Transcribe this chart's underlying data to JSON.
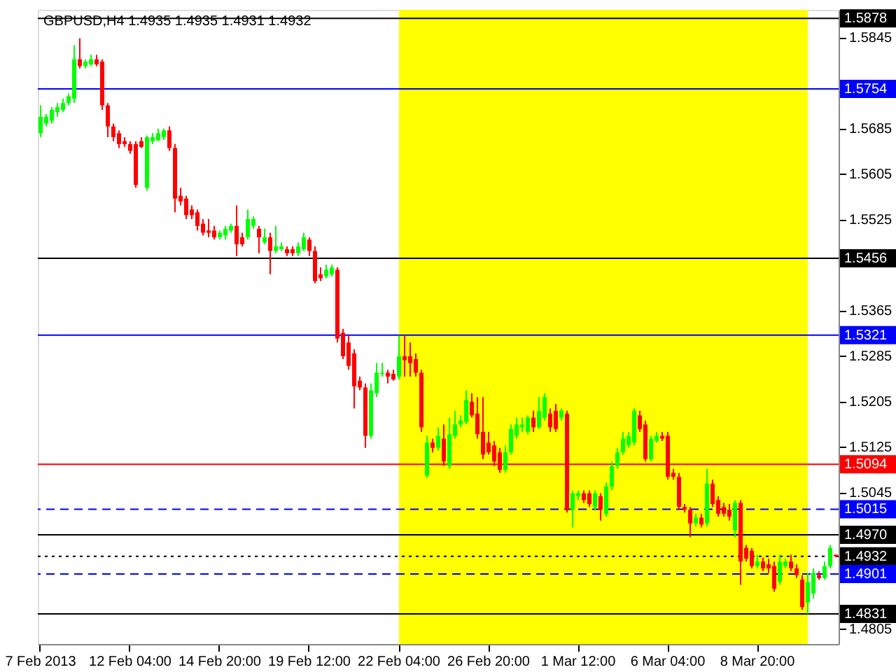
{
  "chart_data": {
    "type": "candlestick",
    "title": "GBPUSD,H4  1.4935 1.4935 1.4931 1.4932",
    "categories": [
      "7 Feb 2013",
      null,
      null,
      null,
      null,
      null,
      null,
      null,
      null,
      null,
      null,
      null,
      null,
      null,
      null,
      null,
      "12 Feb 04:00",
      null,
      null,
      null,
      null,
      null,
      null,
      null,
      null,
      null,
      null,
      null,
      null,
      null,
      null,
      null,
      "14 Feb 20:00",
      null,
      null,
      null,
      null,
      null,
      null,
      null,
      null,
      null,
      null,
      null,
      null,
      null,
      null,
      null,
      "19 Feb 12:00",
      null,
      null,
      null,
      null,
      null,
      null,
      null,
      null,
      null,
      null,
      null,
      null,
      null,
      null,
      null,
      "22 Feb 04:00",
      null,
      null,
      null,
      null,
      null,
      null,
      null,
      null,
      null,
      null,
      null,
      null,
      null,
      null,
      null,
      "26 Feb 20:00",
      null,
      null,
      null,
      null,
      null,
      null,
      null,
      null,
      null,
      null,
      null,
      null,
      null,
      null,
      null,
      "1 Mar 12:00",
      null,
      null,
      null,
      null,
      null,
      null,
      null,
      null,
      null,
      null,
      null,
      null,
      null,
      null,
      null,
      "6 Mar 04:00",
      null,
      null,
      null,
      null,
      null,
      null,
      null,
      null,
      null,
      null,
      null,
      null,
      null,
      null,
      null,
      "8 Mar 20:00",
      null,
      null,
      null,
      null,
      null,
      null,
      null,
      null,
      null,
      null,
      null,
      null,
      null,
      null
    ],
    "ohlc": [
      [
        1.5676,
        1.5725,
        1.5669,
        1.5705
      ],
      [
        1.5693,
        1.571,
        1.5688,
        1.5705
      ],
      [
        1.5698,
        1.5722,
        1.5693,
        1.5717
      ],
      [
        1.5713,
        1.5729,
        1.5705,
        1.5722
      ],
      [
        1.5717,
        1.5737,
        1.5713,
        1.5729
      ],
      [
        1.5729,
        1.5746,
        1.5725,
        1.5741
      ],
      [
        1.5737,
        1.5831,
        1.5729,
        1.5806
      ],
      [
        1.5806,
        1.5843,
        1.579,
        1.5794
      ],
      [
        1.5794,
        1.5806,
        1.579,
        1.5802
      ],
      [
        1.5797,
        1.5814,
        1.5794,
        1.5806
      ],
      [
        1.5806,
        1.5814,
        1.5794,
        1.5797
      ],
      [
        1.5802,
        1.5806,
        1.5717,
        1.5725
      ],
      [
        1.5725,
        1.5729,
        1.5669,
        1.5688
      ],
      [
        1.5688,
        1.5693,
        1.5662,
        1.5669
      ],
      [
        1.5676,
        1.5681,
        1.565,
        1.5657
      ],
      [
        1.5662,
        1.5669,
        1.5652,
        1.5657
      ],
      [
        1.5657,
        1.5662,
        1.564,
        1.5645
      ],
      [
        1.5657,
        1.5662,
        1.558,
        1.5585
      ],
      [
        1.5662,
        1.5669,
        1.565,
        1.5652
      ],
      [
        1.558,
        1.5672,
        1.5575,
        1.5669
      ],
      [
        1.5662,
        1.5676,
        1.5657,
        1.5669
      ],
      [
        1.5664,
        1.5684,
        1.5662,
        1.5676
      ],
      [
        1.5669,
        1.5684,
        1.5664,
        1.5681
      ],
      [
        1.5681,
        1.5688,
        1.5645,
        1.565
      ],
      [
        1.565,
        1.5657,
        1.5537,
        1.5561
      ],
      [
        1.5566,
        1.558,
        1.5549,
        1.5556
      ],
      [
        1.5561,
        1.5566,
        1.5525,
        1.5532
      ],
      [
        1.5542,
        1.5549,
        1.5525,
        1.5532
      ],
      [
        1.5537,
        1.5542,
        1.5505,
        1.5513
      ],
      [
        1.5517,
        1.5525,
        1.5496,
        1.5501
      ],
      [
        1.5505,
        1.5525,
        1.5493,
        1.5501
      ],
      [
        1.5505,
        1.5513,
        1.5489,
        1.5493
      ],
      [
        1.5493,
        1.5505,
        1.5489,
        1.5501
      ],
      [
        1.5496,
        1.5513,
        1.5489,
        1.5508
      ],
      [
        1.5505,
        1.5517,
        1.5501,
        1.5513
      ],
      [
        1.5513,
        1.5549,
        1.546,
        1.5481
      ],
      [
        1.5493,
        1.5501,
        1.5477,
        1.5481
      ],
      [
        1.5493,
        1.5542,
        1.5489,
        1.5525
      ],
      [
        1.5513,
        1.553,
        1.5508,
        1.5525
      ],
      [
        1.5508,
        1.5513,
        1.5465,
        1.5493
      ],
      [
        1.5484,
        1.5508,
        1.5481,
        1.5493
      ],
      [
        1.5493,
        1.5501,
        1.5428,
        1.5469
      ],
      [
        1.5469,
        1.5513,
        1.5465,
        1.5477
      ],
      [
        1.5472,
        1.5484,
        1.5469,
        1.5477
      ],
      [
        1.5472,
        1.5477,
        1.546,
        1.5465
      ],
      [
        1.5472,
        1.5477,
        1.546,
        1.5465
      ],
      [
        1.5465,
        1.5484,
        1.546,
        1.5477
      ],
      [
        1.5472,
        1.5501,
        1.5469,
        1.5493
      ],
      [
        1.5489,
        1.5493,
        1.546,
        1.5469
      ],
      [
        1.5469,
        1.5477,
        1.5412,
        1.5416
      ],
      [
        1.5428,
        1.544,
        1.5416,
        1.5421
      ],
      [
        1.5424,
        1.5445,
        1.5421,
        1.5436
      ],
      [
        1.5428,
        1.5445,
        1.5424,
        1.544
      ],
      [
        1.5436,
        1.544,
        1.5308,
        1.5315
      ],
      [
        1.5325,
        1.5332,
        1.5279,
        1.5284
      ],
      [
        1.5308,
        1.532,
        1.526,
        1.5267
      ],
      [
        1.5289,
        1.5296,
        1.5192,
        1.5231
      ],
      [
        1.5241,
        1.5248,
        1.5224,
        1.5229
      ],
      [
        1.5229,
        1.5236,
        1.5123,
        1.5144
      ],
      [
        1.5144,
        1.5236,
        1.5139,
        1.5224
      ],
      [
        1.5219,
        1.5272,
        1.5212,
        1.5255
      ],
      [
        1.5253,
        1.5272,
        1.5248,
        1.5255
      ],
      [
        1.5255,
        1.526,
        1.5236,
        1.5248
      ],
      [
        1.5253,
        1.526,
        1.5241,
        1.5243
      ],
      [
        1.5248,
        1.532,
        1.5243,
        1.5284
      ],
      [
        1.5284,
        1.532,
        1.5248,
        1.5277
      ],
      [
        1.5284,
        1.5308,
        1.5248,
        1.5272
      ],
      [
        1.5279,
        1.5289,
        1.5248,
        1.5255
      ],
      [
        1.5255,
        1.526,
        1.5151,
        1.5159
      ],
      [
        1.5074,
        1.5144,
        1.507,
        1.5132
      ],
      [
        1.5132,
        1.5139,
        1.5115,
        1.5123
      ],
      [
        1.5123,
        1.5159,
        1.5118,
        1.5144
      ],
      [
        1.5139,
        1.5164,
        1.5091,
        1.5099
      ],
      [
        1.5091,
        1.5176,
        1.5086,
        1.5147
      ],
      [
        1.5144,
        1.5188,
        1.5139,
        1.5164
      ],
      [
        1.5164,
        1.518,
        1.5159,
        1.5171
      ],
      [
        1.5168,
        1.5224,
        1.5164,
        1.5207
      ],
      [
        1.5204,
        1.5219,
        1.5176,
        1.518
      ],
      [
        1.5183,
        1.5212,
        1.5139,
        1.5147
      ],
      [
        1.5151,
        1.5212,
        1.5103,
        1.5111
      ],
      [
        1.5132,
        1.5151,
        1.5111,
        1.5115
      ],
      [
        1.5127,
        1.5135,
        1.5091,
        1.5099
      ],
      [
        1.5115,
        1.5123,
        1.5079,
        1.5084
      ],
      [
        1.5084,
        1.5127,
        1.5079,
        1.5115
      ],
      [
        1.5115,
        1.5164,
        1.5111,
        1.5156
      ],
      [
        1.5144,
        1.5176,
        1.5139,
        1.5164
      ],
      [
        1.5159,
        1.5176,
        1.5151,
        1.5164
      ],
      [
        1.5151,
        1.518,
        1.5147,
        1.5176
      ],
      [
        1.5176,
        1.5188,
        1.5151,
        1.5159
      ],
      [
        1.5159,
        1.5212,
        1.5156,
        1.5188
      ],
      [
        1.5176,
        1.5219,
        1.5171,
        1.5212
      ],
      [
        1.5183,
        1.5192,
        1.5151,
        1.5159
      ],
      [
        1.5188,
        1.52,
        1.5151,
        1.5156
      ],
      [
        1.5176,
        1.5192,
        1.5171,
        1.5188
      ],
      [
        1.5183,
        1.5188,
        1.5009,
        1.5014
      ],
      [
        1.5014,
        1.5048,
        1.4983,
        1.5043
      ],
      [
        1.5038,
        1.5048,
        1.5031,
        1.5043
      ],
      [
        1.5043,
        1.5048,
        1.5026,
        1.5031
      ],
      [
        1.5043,
        1.5048,
        1.5019,
        1.5024
      ],
      [
        1.5019,
        1.5048,
        1.5014,
        1.5043
      ],
      [
        1.5038,
        1.5043,
        1.4995,
        1.5014
      ],
      [
        1.5007,
        1.5062,
        1.5002,
        1.5055
      ],
      [
        1.5055,
        1.5099,
        1.5048,
        1.5091
      ],
      [
        1.5091,
        1.5123,
        1.5086,
        1.5115
      ],
      [
        1.5115,
        1.5151,
        1.5111,
        1.5139
      ],
      [
        1.5127,
        1.5151,
        1.5123,
        1.5144
      ],
      [
        1.5132,
        1.5192,
        1.5127,
        1.5188
      ],
      [
        1.518,
        1.5188,
        1.5151,
        1.5156
      ],
      [
        1.5164,
        1.5171,
        1.5099,
        1.5103
      ],
      [
        1.5103,
        1.5144,
        1.5099,
        1.5139
      ],
      [
        1.5135,
        1.5151,
        1.5132,
        1.5144
      ],
      [
        1.5144,
        1.5151,
        1.5135,
        1.5139
      ],
      [
        1.5144,
        1.5151,
        1.5067,
        1.5072
      ],
      [
        1.5079,
        1.5086,
        1.5067,
        1.5072
      ],
      [
        1.5072,
        1.5079,
        1.5014,
        1.5019
      ],
      [
        1.5019,
        1.5024,
        1.5009,
        1.5014
      ],
      [
        1.5014,
        1.5019,
        1.4966,
        1.499
      ],
      [
        1.499,
        1.5007,
        1.4985,
        1.5
      ],
      [
        1.5,
        1.5007,
        1.4983,
        1.4988
      ],
      [
        1.499,
        1.5086,
        1.4985,
        1.506
      ],
      [
        1.506,
        1.5067,
        1.5019,
        1.5024
      ],
      [
        1.5031,
        1.5038,
        1.5002,
        1.5007
      ],
      [
        1.5019,
        1.5026,
        1.5002,
        1.5007
      ],
      [
        1.5014,
        1.5024,
        1.4995,
        1.5002
      ],
      [
        1.4978,
        1.5031,
        1.4966,
        1.5026
      ],
      [
        1.5026,
        1.5031,
        1.4882,
        1.4923
      ],
      [
        1.4947,
        1.4952,
        1.4923,
        1.4928
      ],
      [
        1.4942,
        1.4947,
        1.4911,
        1.4915
      ],
      [
        1.4915,
        1.4935,
        1.4911,
        1.4923
      ],
      [
        1.4923,
        1.493,
        1.4906,
        1.4911
      ],
      [
        1.4918,
        1.4928,
        1.4903,
        1.4911
      ],
      [
        1.4915,
        1.4923,
        1.487,
        1.4875
      ],
      [
        1.4887,
        1.4935,
        1.4882,
        1.4923
      ],
      [
        1.4915,
        1.4928,
        1.4911,
        1.4923
      ],
      [
        1.4923,
        1.4935,
        1.4906,
        1.4911
      ],
      [
        1.4911,
        1.4918,
        1.4894,
        1.4899
      ],
      [
        1.4891,
        1.4899,
        1.4838,
        1.4843
      ],
      [
        1.4851,
        1.4903,
        1.4831,
        1.4887
      ],
      [
        1.4867,
        1.4911,
        1.4858,
        1.4903
      ],
      [
        1.4899,
        1.4906,
        1.4891,
        1.4894
      ],
      [
        1.4894,
        1.4923,
        1.4891,
        1.4915
      ],
      [
        1.4915,
        1.4952,
        1.4911,
        1.4947
      ],
      [
        1.4935,
        1.4935,
        1.4931,
        1.4932
      ]
    ],
    "ylim": [
      1.4778,
      1.5893
    ],
    "yticks": [
      1.5845,
      1.5685,
      1.5605,
      1.5525,
      1.5365,
      1.5285,
      1.5205,
      1.5125,
      1.5045,
      1.4805
    ],
    "ref_lines": [
      {
        "axis": "y",
        "value": 1.5878,
        "label": "1.5878",
        "color": "#000000"
      },
      {
        "axis": "y",
        "value": 1.5754,
        "label": "1.5754",
        "color": "#0000ff"
      },
      {
        "axis": "y",
        "value": 1.5456,
        "label": "1.5456",
        "color": "#000000"
      },
      {
        "axis": "y",
        "value": 1.5321,
        "label": "1.5321",
        "color": "#0000ff"
      },
      {
        "axis": "y",
        "value": 1.5094,
        "label": "1.5094",
        "color": "#ff0000"
      },
      {
        "axis": "y",
        "value": 1.5015,
        "label": "1.5015",
        "color": "#0000ff",
        "line_style": "dashed"
      },
      {
        "axis": "y",
        "value": 1.497,
        "label": "1.4970",
        "color": "#000000"
      },
      {
        "axis": "y",
        "value": 1.4932,
        "label": "1.4932",
        "color": "#000000",
        "line_style": "dotted"
      },
      {
        "axis": "y",
        "value": 1.4901,
        "label": "1.4901",
        "color": "#0000ff",
        "line_style": "dashed"
      },
      {
        "axis": "y",
        "value": 1.4831,
        "label": "1.4831",
        "color": "#000000"
      }
    ]
  }
}
